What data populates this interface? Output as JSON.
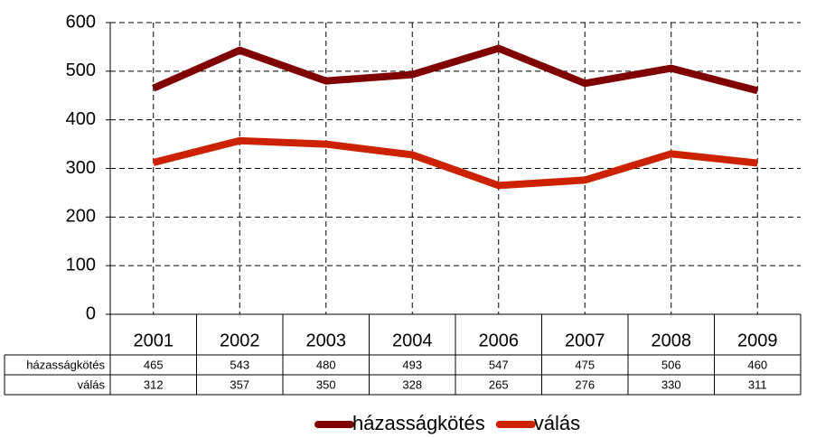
{
  "chart_data": {
    "type": "line",
    "categories": [
      "2001",
      "2002",
      "2003",
      "2004",
      "2006",
      "2007",
      "2008",
      "2009"
    ],
    "series": [
      {
        "name": "házasságkötés",
        "color": "#800000",
        "values": [
          465,
          543,
          480,
          493,
          547,
          475,
          506,
          460
        ]
      },
      {
        "name": "válás",
        "color": "#cc2200",
        "values": [
          312,
          357,
          350,
          328,
          265,
          276,
          330,
          311
        ]
      }
    ],
    "ylim": [
      0,
      600
    ],
    "yticks": [
      0,
      100,
      200,
      300,
      400,
      500,
      600
    ],
    "grid": true
  }
}
